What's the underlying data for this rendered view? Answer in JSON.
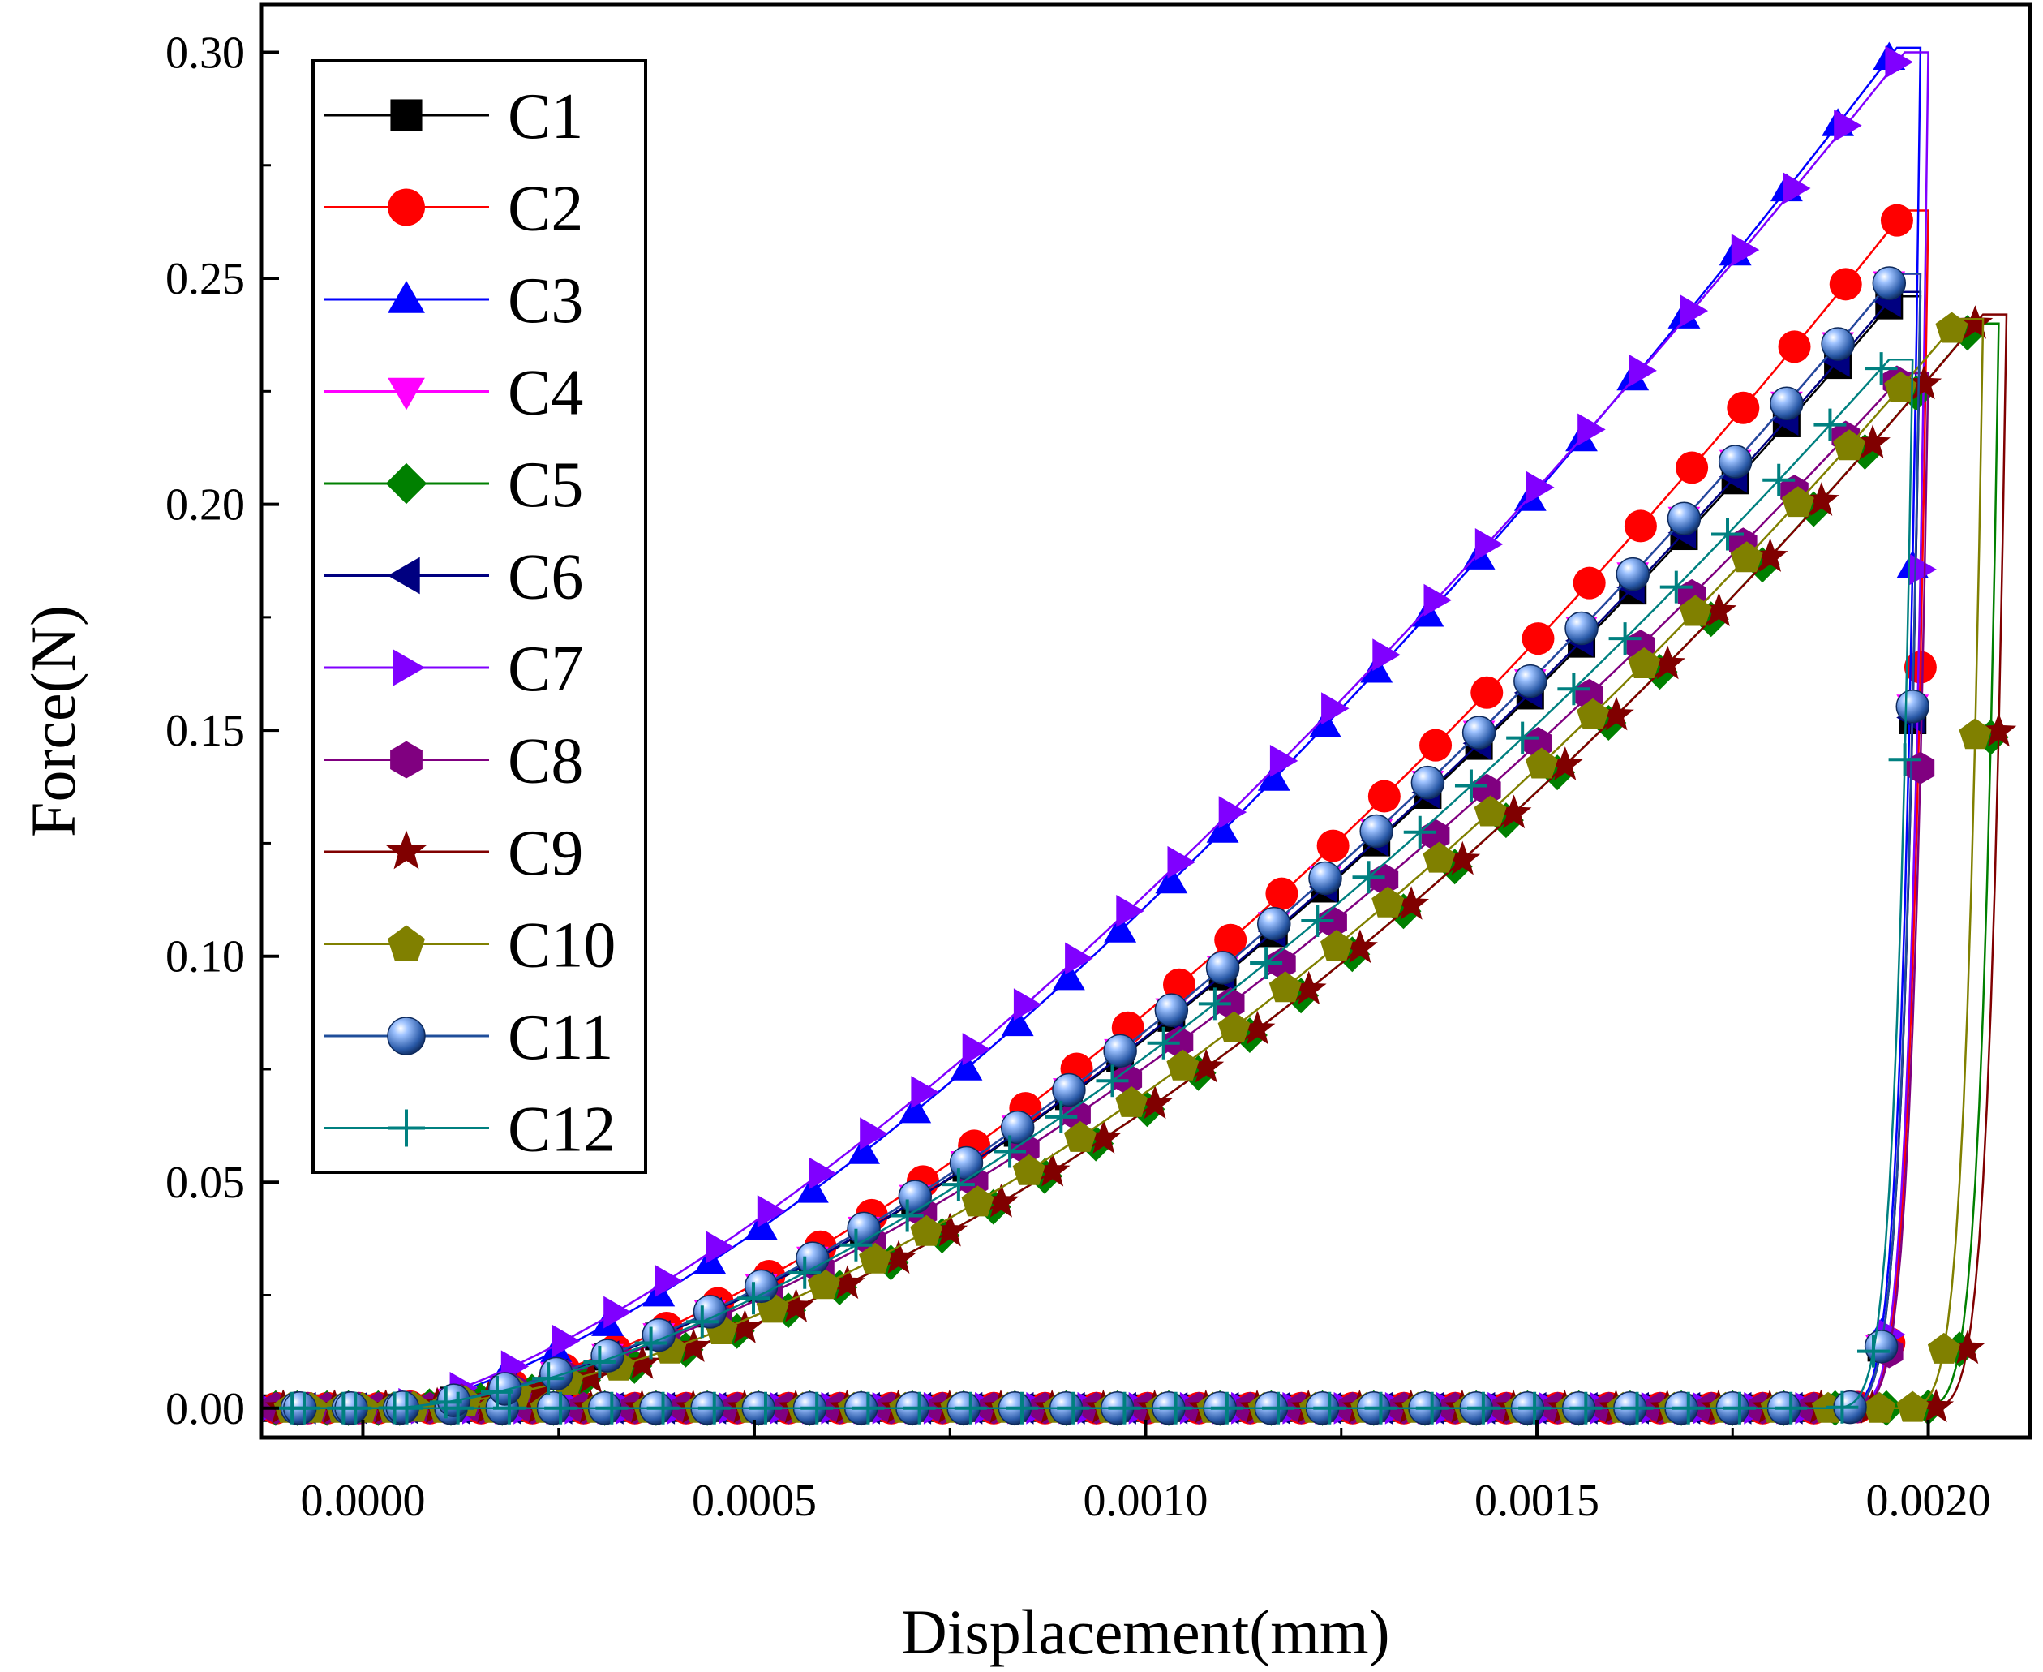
{
  "chart_data": {
    "type": "line",
    "xlabel": "Displacement(mm)",
    "ylabel": "Force(N)",
    "xlim": [
      -0.00013,
      0.00213
    ],
    "ylim": [
      -0.0065,
      0.3105
    ],
    "x_ticks": [
      "0.0000",
      "0.0005",
      "0.0010",
      "0.0015",
      "0.0020"
    ],
    "x_tick_values": [
      0.0,
      0.0005,
      0.001,
      0.0015,
      0.002
    ],
    "y_ticks": [
      "0.00",
      "0.05",
      "0.10",
      "0.15",
      "0.20",
      "0.25",
      "0.30"
    ],
    "y_tick_values": [
      0.0,
      0.05,
      0.1,
      0.15,
      0.2,
      0.25,
      0.3
    ],
    "legend_position": "top-left",
    "grid": false,
    "series": [
      {
        "name": "C1",
        "color": "#000000",
        "marker": "square",
        "peak_x": 0.00199,
        "peak_y": 0.246,
        "exponent": 1.6
      },
      {
        "name": "C2",
        "color": "#ff0000",
        "marker": "circle",
        "peak_x": 0.002,
        "peak_y": 0.265,
        "exponent": 1.6
      },
      {
        "name": "C3",
        "color": "#0000ff",
        "marker": "triangle-up",
        "peak_x": 0.00199,
        "peak_y": 0.301,
        "exponent": 1.45
      },
      {
        "name": "C4",
        "color": "#ff00ff",
        "marker": "triangle-down",
        "peak_x": 0.00199,
        "peak_y": 0.251,
        "exponent": 1.6
      },
      {
        "name": "C5",
        "color": "#008000",
        "marker": "diamond",
        "peak_x": 0.00209,
        "peak_y": 0.24,
        "exponent": 1.75
      },
      {
        "name": "C6",
        "color": "#000080",
        "marker": "triangle-left",
        "peak_x": 0.00199,
        "peak_y": 0.247,
        "exponent": 1.6
      },
      {
        "name": "C7",
        "color": "#8000ff",
        "marker": "triangle-right",
        "peak_x": 0.002,
        "peak_y": 0.3,
        "exponent": 1.4
      },
      {
        "name": "C8",
        "color": "#800080",
        "marker": "hexagon",
        "peak_x": 0.002,
        "peak_y": 0.229,
        "exponent": 1.6
      },
      {
        "name": "C9",
        "color": "#800000",
        "marker": "star",
        "peak_x": 0.0021,
        "peak_y": 0.242,
        "exponent": 1.75
      },
      {
        "name": "C10",
        "color": "#808000",
        "marker": "pentagon",
        "peak_x": 0.00207,
        "peak_y": 0.241,
        "exponent": 1.7
      },
      {
        "name": "C11",
        "color": "#1f4e9a",
        "marker": "sphere",
        "peak_x": 0.00199,
        "peak_y": 0.251,
        "exponent": 1.6
      },
      {
        "name": "C12",
        "color": "#008080",
        "marker": "plus",
        "peak_x": 0.00198,
        "peak_y": 0.232,
        "exponent": 1.6
      }
    ]
  }
}
